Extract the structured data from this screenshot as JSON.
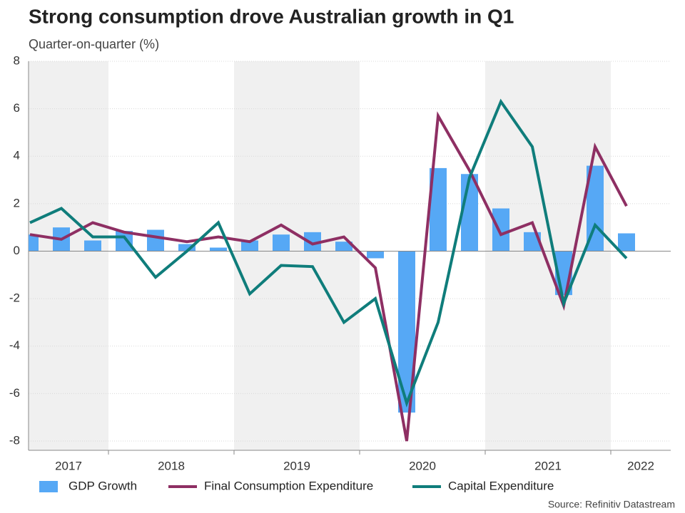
{
  "chart_data": {
    "type": "bar-line",
    "title": "Strong consumption drove Australian growth in Q1",
    "subtitle": "Quarter-on-quarter (%)",
    "source": "Source: Refinitiv Datastream",
    "groups": [
      {
        "label": "2017",
        "size": 3
      },
      {
        "label": "2018",
        "size": 4
      },
      {
        "label": "2019",
        "size": 4
      },
      {
        "label": "2020",
        "size": 4
      },
      {
        "label": "2021",
        "size": 4
      },
      {
        "label": "2022",
        "size": 1
      }
    ],
    "band_shading": "alternate",
    "categories": [
      null,
      null,
      null,
      null,
      null,
      null,
      null,
      null,
      null,
      null,
      null,
      null,
      null,
      null,
      null,
      null,
      null,
      null,
      null,
      null
    ],
    "series": [
      {
        "name": "GDP Growth",
        "kind": "bar",
        "color": "#56a8f5",
        "values": [
          0.7,
          1.0,
          0.45,
          0.85,
          0.9,
          0.3,
          0.15,
          0.45,
          0.7,
          0.8,
          0.4,
          -0.3,
          -6.8,
          3.5,
          3.25,
          1.8,
          0.8,
          -1.85,
          3.6,
          0.75
        ]
      },
      {
        "name": "Final Consumption Expenditure",
        "kind": "line",
        "color": "#8e2f63",
        "values": [
          0.7,
          0.5,
          1.2,
          0.8,
          0.6,
          0.4,
          0.6,
          0.4,
          1.1,
          0.3,
          0.6,
          -0.7,
          -8.0,
          5.7,
          3.4,
          0.7,
          1.2,
          -2.3,
          4.4,
          1.9
        ]
      },
      {
        "name": "Capital Expenditure",
        "kind": "line",
        "color": "#0f7d7b",
        "values": [
          1.2,
          1.8,
          0.6,
          0.6,
          -1.1,
          0.0,
          1.2,
          -1.8,
          -0.6,
          -0.65,
          -3.0,
          -2.0,
          -6.4,
          -3.0,
          3.1,
          6.3,
          4.4,
          -2.2,
          1.1,
          -0.3
        ]
      }
    ],
    "ylim": [
      -8,
      8
    ],
    "yticks": [
      -8,
      -6,
      -4,
      -2,
      0,
      2,
      4,
      6,
      8
    ],
    "grid": true
  }
}
